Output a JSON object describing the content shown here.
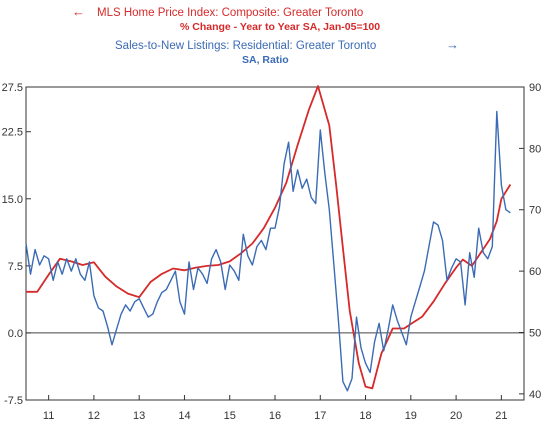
{
  "chart_data": {
    "type": "line",
    "legend": {
      "left_series": {
        "arrow": "←",
        "line1": "MLS Home Price Index: Composite: Greater Toronto",
        "line2": "% Change - Year to Year   SA, Jan-05=100"
      },
      "right_series": {
        "arrow": "→",
        "line1": "Sales-to-New Listings: Residential: Greater Toronto",
        "line2": "SA, Ratio"
      }
    },
    "x_axis": {
      "range": [
        2010.5,
        2021.5
      ],
      "ticks": [
        "11",
        "12",
        "13",
        "14",
        "15",
        "16",
        "17",
        "18",
        "19",
        "20",
        "21"
      ],
      "tick_positions": [
        2011,
        2012,
        2013,
        2014,
        2015,
        2016,
        2017,
        2018,
        2019,
        2020,
        2021
      ]
    },
    "y_left": {
      "range": [
        -7.5,
        27.5
      ],
      "ticks": [
        -7.5,
        0.0,
        7.5,
        15.0,
        22.5
      ],
      "tick_labels": [
        "-7.5",
        "0.0",
        "7.5",
        "15.0",
        "22.5"
      ],
      "edge_labels": [
        "27.5",
        "-7.5"
      ],
      "zero_line": 0
    },
    "y_right": {
      "range": [
        39,
        90
      ],
      "ticks": [
        40,
        50,
        60,
        70,
        80,
        90
      ],
      "tick_labels": [
        "40",
        "50",
        "60",
        "70",
        "80",
        "90"
      ]
    },
    "colors": {
      "price": "#d62a2a",
      "sales": "#3b6bb5",
      "axis": "#333333"
    },
    "series": [
      {
        "name": "MLS Home Price Index: Composite: Greater Toronto",
        "axis": "left",
        "x": [
          2010.5,
          2010.75,
          2011.0,
          2011.25,
          2011.5,
          2011.75,
          2012.0,
          2012.25,
          2012.5,
          2012.75,
          2013.0,
          2013.25,
          2013.5,
          2013.75,
          2014.0,
          2014.25,
          2014.5,
          2014.75,
          2015.0,
          2015.25,
          2015.5,
          2015.75,
          2016.0,
          2016.25,
          2016.5,
          2016.75,
          2016.95,
          2017.2,
          2017.35,
          2017.5,
          2017.65,
          2017.85,
          2018.0,
          2018.15,
          2018.35,
          2018.6,
          2018.85,
          2019.0,
          2019.25,
          2019.5,
          2019.75,
          2020.0,
          2020.15,
          2020.35,
          2020.55,
          2020.75,
          2020.9,
          2021.0,
          2021.2
        ],
        "values": [
          4.6,
          4.6,
          6.5,
          8.3,
          8.0,
          7.6,
          7.9,
          6.3,
          5.2,
          4.4,
          4.0,
          5.7,
          6.6,
          7.2,
          7.0,
          7.3,
          7.5,
          7.6,
          8.0,
          8.9,
          10.0,
          11.7,
          14.0,
          16.8,
          21.0,
          25.0,
          27.6,
          23.2,
          16.6,
          9.5,
          2.5,
          -3.4,
          -6.0,
          -6.2,
          -2.3,
          0.5,
          0.5,
          1.0,
          1.8,
          3.5,
          5.5,
          7.3,
          8.2,
          7.5,
          9.0,
          10.5,
          12.5,
          15.0,
          16.6
        ]
      },
      {
        "name": "Sales-to-New Listings: Residential: Greater Toronto",
        "axis": "right",
        "x": [
          2010.5,
          2010.6,
          2010.7,
          2010.8,
          2010.9,
          2011.0,
          2011.1,
          2011.2,
          2011.3,
          2011.4,
          2011.5,
          2011.6,
          2011.7,
          2011.8,
          2011.9,
          2012.0,
          2012.1,
          2012.2,
          2012.3,
          2012.4,
          2012.5,
          2012.6,
          2012.7,
          2012.8,
          2012.9,
          2013.0,
          2013.1,
          2013.2,
          2013.3,
          2013.4,
          2013.5,
          2013.6,
          2013.7,
          2013.8,
          2013.9,
          2014.0,
          2014.1,
          2014.2,
          2014.3,
          2014.4,
          2014.5,
          2014.6,
          2014.7,
          2014.8,
          2014.9,
          2015.0,
          2015.1,
          2015.2,
          2015.3,
          2015.4,
          2015.5,
          2015.6,
          2015.7,
          2015.8,
          2015.9,
          2016.0,
          2016.1,
          2016.2,
          2016.3,
          2016.4,
          2016.5,
          2016.6,
          2016.7,
          2016.8,
          2016.9,
          2017.0,
          2017.1,
          2017.2,
          2017.3,
          2017.4,
          2017.5,
          2017.6,
          2017.7,
          2017.8,
          2017.9,
          2018.0,
          2018.1,
          2018.2,
          2018.3,
          2018.4,
          2018.5,
          2018.6,
          2018.7,
          2018.8,
          2018.9,
          2019.0,
          2019.1,
          2019.2,
          2019.3,
          2019.4,
          2019.5,
          2019.6,
          2019.7,
          2019.8,
          2019.9,
          2020.0,
          2020.1,
          2020.2,
          2020.3,
          2020.4,
          2020.5,
          2020.6,
          2020.7,
          2020.8,
          2020.9,
          2021.0,
          2021.1,
          2021.2
        ],
        "values": [
          64.5,
          59.5,
          63.5,
          61.0,
          62.5,
          62.0,
          58.5,
          61.5,
          59.5,
          62.0,
          60.0,
          62.0,
          59.5,
          58.5,
          61.5,
          56.0,
          54.0,
          53.5,
          51.0,
          48.0,
          50.5,
          53.0,
          54.5,
          53.5,
          55.0,
          55.5,
          54.0,
          52.5,
          53.0,
          55.0,
          56.5,
          57.0,
          58.5,
          60.0,
          55.0,
          53.0,
          61.5,
          57.0,
          60.5,
          59.5,
          58.0,
          62.0,
          63.5,
          61.5,
          57.0,
          61.0,
          60.0,
          58.5,
          66.0,
          62.5,
          61.0,
          64.0,
          65.0,
          63.5,
          67.0,
          67.0,
          70.5,
          77.5,
          81.0,
          73.0,
          76.5,
          73.5,
          75.0,
          72.0,
          71.0,
          83.0,
          76.0,
          70.0,
          61.0,
          52.0,
          42.0,
          40.5,
          42.5,
          52.5,
          47.5,
          45.0,
          43.5,
          48.5,
          51.5,
          47.0,
          50.5,
          54.5,
          52.0,
          50.0,
          48.0,
          52.5,
          55.0,
          57.5,
          60.0,
          64.0,
          68.0,
          67.5,
          65.0,
          58.5,
          60.5,
          62.0,
          61.5,
          54.5,
          63.0,
          59.0,
          67.0,
          63.0,
          62.0,
          64.0,
          86.0,
          74.0,
          70.0,
          69.5
        ]
      }
    ],
    "grid": false
  }
}
